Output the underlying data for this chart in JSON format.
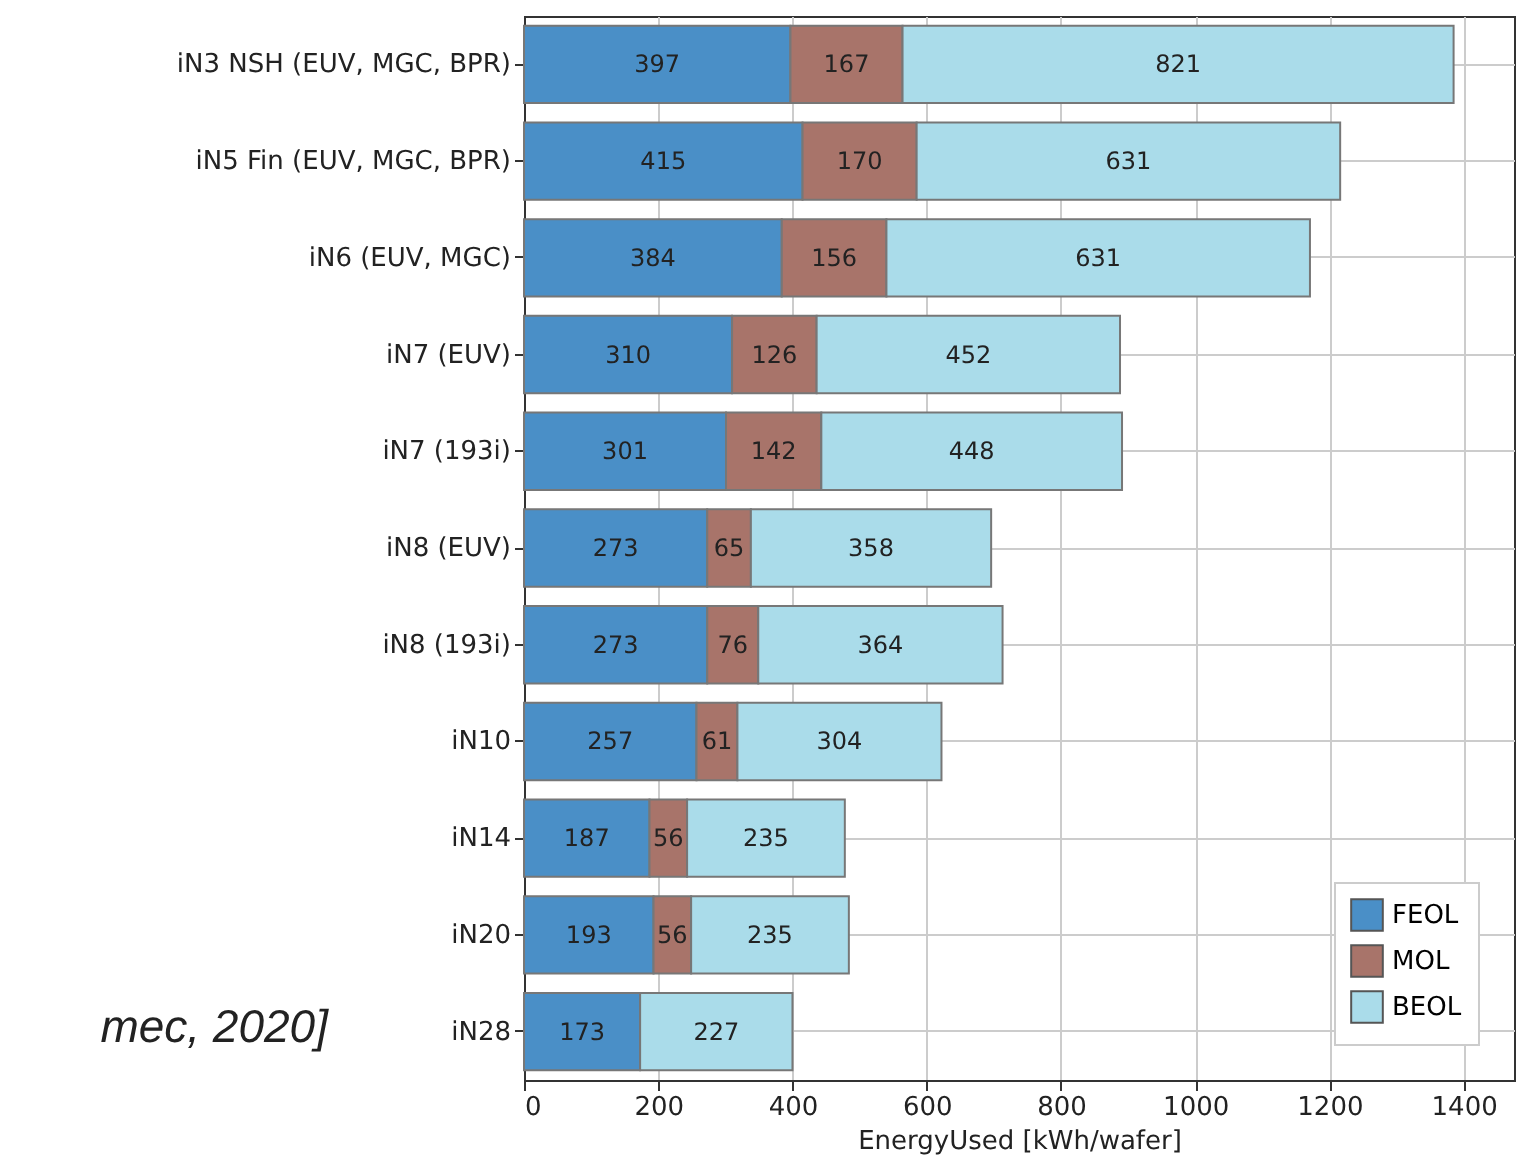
{
  "chart_data": {
    "type": "bar",
    "orientation": "horizontal",
    "stacked": true,
    "categories": [
      "iN3 NSH (EUV, MGC, BPR)",
      "iN5 Fin (EUV, MGC, BPR)",
      "iN6 (EUV, MGC)",
      "iN7 (EUV)",
      "iN7 (193i)",
      "iN8 (EUV)",
      "iN8 (193i)",
      "iN10",
      "iN14",
      "iN20",
      "iN28"
    ],
    "series": [
      {
        "name": "FEOL",
        "color": "#4a8fc7",
        "values": [
          397,
          415,
          384,
          310,
          301,
          273,
          273,
          257,
          187,
          193,
          173
        ]
      },
      {
        "name": "MOL",
        "color": "#a8746a",
        "values": [
          167,
          170,
          156,
          126,
          142,
          65,
          76,
          61,
          56,
          56,
          null
        ]
      },
      {
        "name": "BEOL",
        "color": "#aadcea",
        "values": [
          821,
          631,
          631,
          452,
          448,
          358,
          364,
          304,
          235,
          235,
          227
        ]
      }
    ],
    "xlabel": "EnergyUsed [kWh/wafer]",
    "xlim": [
      0,
      1475
    ],
    "xticks": [
      0,
      200,
      400,
      600,
      800,
      1000,
      1200,
      1400
    ],
    "grid": true,
    "legend": "bottom right",
    "data_labels": true,
    "annotations": [
      "mec, 2020]"
    ]
  }
}
